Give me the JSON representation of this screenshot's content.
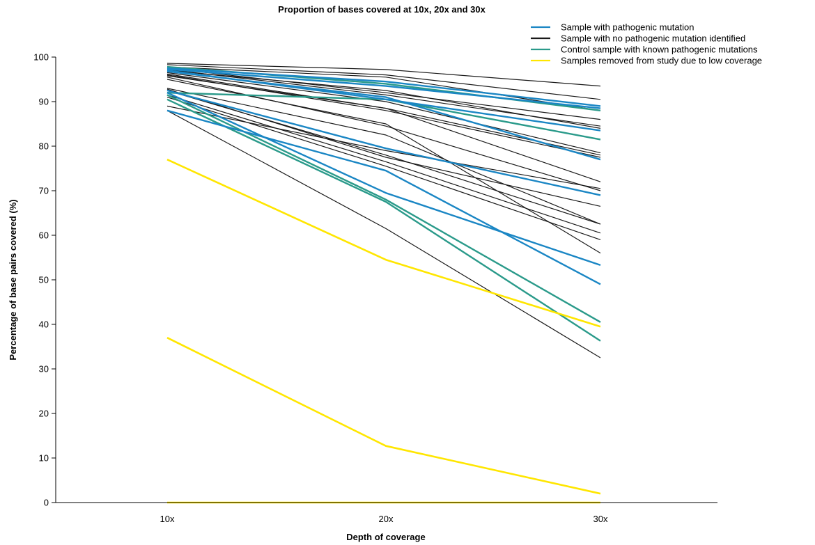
{
  "chart_data": {
    "type": "line",
    "title": "Proportion of bases covered at 10x, 20x and 30x",
    "xlabel": "Depth of coverage",
    "ylabel": "Percentage of base pairs covered (%)",
    "categories": [
      "10x",
      "20x",
      "30x"
    ],
    "ylim": [
      0,
      100
    ],
    "yticks": [
      0,
      10,
      20,
      30,
      40,
      50,
      60,
      70,
      80,
      90,
      100
    ],
    "grid": false,
    "legend_position": "top-right",
    "groups": [
      {
        "label": "Sample with pathogenic mutation",
        "color": "#1a86c4"
      },
      {
        "label": "Sample with no pathogenic mutation identified",
        "color": "#1a1a1a"
      },
      {
        "label": "Control sample with known pathogenic mutations",
        "color": "#2a9a8a"
      },
      {
        "label": "Samples removed from study due to low coverage",
        "color": "#ffe600"
      }
    ],
    "series": [
      {
        "group": 0,
        "values": [
          97.5,
          94.5,
          89
        ]
      },
      {
        "group": 0,
        "values": [
          97.3,
          93.5,
          88.5
        ]
      },
      {
        "group": 0,
        "values": [
          97,
          90.5,
          83.5
        ]
      },
      {
        "group": 0,
        "values": [
          96.8,
          91,
          77
        ]
      },
      {
        "group": 0,
        "values": [
          92.5,
          79.5,
          69
        ]
      },
      {
        "group": 0,
        "values": [
          92,
          69.5,
          53.3
        ]
      },
      {
        "group": 0,
        "values": [
          88,
          74.5,
          49
        ]
      },
      {
        "group": 1,
        "values": [
          98.6,
          97.2,
          93.5
        ]
      },
      {
        "group": 1,
        "values": [
          98.3,
          96,
          90.5
        ]
      },
      {
        "group": 1,
        "values": [
          97.8,
          95.5,
          88
        ]
      },
      {
        "group": 1,
        "values": [
          97.5,
          92,
          86
        ]
      },
      {
        "group": 1,
        "values": [
          97.2,
          91.5,
          84.5
        ]
      },
      {
        "group": 1,
        "values": [
          97,
          92.5,
          84
        ]
      },
      {
        "group": 1,
        "values": [
          96.5,
          90,
          78.5
        ]
      },
      {
        "group": 1,
        "values": [
          96.2,
          88.5,
          78
        ]
      },
      {
        "group": 1,
        "values": [
          96,
          88,
          77.5
        ]
      },
      {
        "group": 1,
        "values": [
          95.8,
          88.5,
          72
        ]
      },
      {
        "group": 1,
        "values": [
          95.5,
          84.5,
          70
        ]
      },
      {
        "group": 1,
        "values": [
          95,
          85,
          56
        ]
      },
      {
        "group": 1,
        "values": [
          93,
          82.5,
          62.5
        ]
      },
      {
        "group": 1,
        "values": [
          92.8,
          77.5,
          66.5
        ]
      },
      {
        "group": 1,
        "values": [
          92.5,
          78,
          62.5
        ]
      },
      {
        "group": 1,
        "values": [
          91.5,
          76.5,
          60.5
        ]
      },
      {
        "group": 1,
        "values": [
          91,
          75.5,
          59
        ]
      },
      {
        "group": 1,
        "values": [
          89,
          79,
          70.5
        ]
      },
      {
        "group": 1,
        "values": [
          88,
          61.5,
          32.5
        ]
      },
      {
        "group": 2,
        "values": [
          97.8,
          94,
          88
        ]
      },
      {
        "group": 2,
        "values": [
          92,
          90.5,
          81.5
        ]
      },
      {
        "group": 2,
        "values": [
          91.5,
          68,
          40.5
        ]
      },
      {
        "group": 2,
        "values": [
          90.5,
          67.5,
          36.3
        ]
      },
      {
        "group": 3,
        "values": [
          77,
          54.5,
          39.5
        ]
      },
      {
        "group": 3,
        "values": [
          37,
          12.7,
          2
        ]
      },
      {
        "group": 3,
        "values": [
          0,
          0,
          0
        ]
      }
    ]
  }
}
